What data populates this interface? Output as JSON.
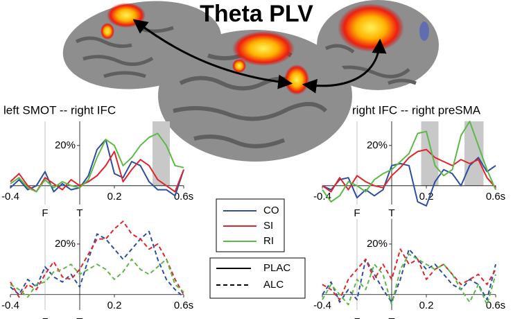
{
  "title": "Theta PLV",
  "chart_data": [
    {
      "type": "line",
      "title": "left SMOT -- right IFC",
      "dashed": false,
      "x": [
        -0.4,
        -0.35,
        -0.3,
        -0.25,
        -0.2,
        -0.15,
        -0.1,
        -0.05,
        0,
        0.05,
        0.1,
        0.15,
        0.2,
        0.25,
        0.3,
        0.35,
        0.4,
        0.45,
        0.5,
        0.55,
        0.6
      ],
      "series": [
        {
          "name": "CO",
          "color": "#2b4ea2",
          "values": [
            -1,
            3,
            -2,
            0,
            7,
            -3,
            1,
            -2,
            -1,
            5,
            18,
            23,
            6,
            4,
            12,
            10,
            2,
            -2,
            -2,
            -5,
            8
          ]
        },
        {
          "name": "SI",
          "color": "#e0242b",
          "values": [
            2,
            6,
            0,
            -3,
            4,
            1,
            -2,
            3,
            0,
            2,
            5,
            10,
            17,
            2,
            8,
            13,
            10,
            3,
            0,
            -3,
            8
          ]
        },
        {
          "name": "RI",
          "color": "#5cb947",
          "values": [
            1,
            4,
            -1,
            -3,
            3,
            -1,
            2,
            0,
            -1,
            3,
            14,
            23,
            20,
            10,
            14,
            20,
            24,
            26,
            20,
            10,
            9
          ]
        }
      ],
      "xlim": [
        -0.4,
        0.6
      ],
      "ylim": [
        -8,
        32
      ],
      "xticks": [
        -0.4,
        0.2,
        {
          "value": 0.6,
          "label": "0.6s"
        }
      ],
      "yticks": [
        {
          "value": 20,
          "label": "20%"
        }
      ],
      "markers": [
        {
          "value": -0.2,
          "label": "F"
        },
        {
          "value": 0,
          "label": "T"
        }
      ],
      "highlights": [
        [
          0.42,
          0.52
        ]
      ]
    },
    {
      "type": "line",
      "title": "right IFC -- right preSMA",
      "dashed": false,
      "x": [
        -0.4,
        -0.35,
        -0.3,
        -0.25,
        -0.2,
        -0.15,
        -0.1,
        -0.05,
        0,
        0.05,
        0.1,
        0.15,
        0.2,
        0.25,
        0.3,
        0.35,
        0.4,
        0.45,
        0.5,
        0.55,
        0.6
      ],
      "series": [
        {
          "name": "CO",
          "color": "#2b4ea2",
          "values": [
            0,
            -2,
            3,
            4,
            -6,
            -2,
            -5,
            -2,
            10,
            11,
            10,
            -8,
            -10,
            2,
            8,
            6,
            0,
            10,
            14,
            7,
            10
          ]
        },
        {
          "name": "SI",
          "color": "#e0242b",
          "values": [
            0,
            -3,
            4,
            -2,
            5,
            2,
            0,
            -1,
            5,
            9,
            14,
            17,
            18,
            14,
            12,
            10,
            13,
            11,
            13,
            4,
            -1
          ]
        },
        {
          "name": "RI",
          "color": "#5cb947",
          "values": [
            -2,
            -8,
            -5,
            2,
            0,
            -3,
            3,
            6,
            8,
            12,
            16,
            26,
            27,
            10,
            5,
            8,
            25,
            32,
            20,
            8,
            -2
          ]
        }
      ],
      "xlim": [
        -0.4,
        0.6
      ],
      "ylim": [
        -8,
        32
      ],
      "xticks": [
        -0.4,
        0.2,
        {
          "value": 0.6,
          "label": "0.6s"
        }
      ],
      "yticks": [
        {
          "value": 20,
          "label": "20%"
        }
      ],
      "markers": [
        {
          "value": -0.2,
          "label": "F"
        },
        {
          "value": 0,
          "label": "T"
        }
      ],
      "highlights": [
        [
          0.17,
          0.27
        ],
        [
          0.42,
          0.53
        ]
      ]
    },
    {
      "type": "line",
      "dashed": true,
      "x": [
        -0.4,
        -0.35,
        -0.3,
        -0.25,
        -0.2,
        -0.15,
        -0.1,
        -0.05,
        0,
        0.05,
        0.1,
        0.15,
        0.2,
        0.25,
        0.3,
        0.35,
        0.4,
        0.45,
        0.5,
        0.55,
        0.6
      ],
      "series": [
        {
          "name": "CO",
          "color": "#2b4ea2",
          "values": [
            3,
            0,
            6,
            3,
            11,
            7,
            5,
            8,
            3,
            14,
            24,
            22,
            18,
            14,
            18,
            22,
            25,
            14,
            6,
            2,
            -1
          ]
        },
        {
          "name": "SI",
          "color": "#e0242b",
          "values": [
            5,
            -1,
            4,
            2,
            8,
            13,
            7,
            6,
            10,
            16,
            22,
            22,
            26,
            29,
            24,
            22,
            18,
            20,
            14,
            6,
            0
          ]
        },
        {
          "name": "RI",
          "color": "#5cb947",
          "values": [
            4,
            2,
            -1,
            4,
            5,
            9,
            10,
            12,
            8,
            10,
            12,
            10,
            6,
            9,
            14,
            10,
            8,
            11,
            14,
            4,
            1
          ]
        }
      ],
      "xlim": [
        -0.4,
        0.6
      ],
      "ylim": [
        -5,
        30
      ],
      "xticks": [
        -0.4,
        0.2,
        {
          "value": 0.6,
          "label": "0.6s"
        }
      ],
      "yticks": [
        {
          "value": 20,
          "label": "20%"
        }
      ],
      "markers": [
        {
          "value": -0.2,
          "label": "F"
        },
        {
          "value": 0,
          "label": "T"
        }
      ]
    },
    {
      "type": "line",
      "dashed": true,
      "x": [
        -0.4,
        -0.35,
        -0.3,
        -0.25,
        -0.2,
        -0.15,
        -0.1,
        -0.05,
        0,
        0.05,
        0.1,
        0.15,
        0.2,
        0.25,
        0.3,
        0.35,
        0.4,
        0.45,
        0.5,
        0.55,
        0.6
      ],
      "series": [
        {
          "name": "CO",
          "color": "#2b4ea2",
          "values": [
            0,
            5,
            -3,
            2,
            -2,
            14,
            8,
            2,
            -3,
            6,
            18,
            14,
            10,
            12,
            8,
            4,
            2,
            6,
            4,
            -2,
            12
          ]
        },
        {
          "name": "SI",
          "color": "#e0242b",
          "values": [
            4,
            2,
            -2,
            6,
            10,
            14,
            6,
            12,
            6,
            18,
            12,
            14,
            6,
            10,
            12,
            8,
            4,
            6,
            8,
            4,
            10
          ]
        },
        {
          "name": "RI",
          "color": "#5cb947",
          "values": [
            -2,
            4,
            0,
            -4,
            6,
            2,
            12,
            8,
            -4,
            10,
            16,
            14,
            12,
            10,
            12,
            8,
            2,
            -3,
            4,
            -4,
            8
          ]
        }
      ],
      "xlim": [
        -0.4,
        0.6
      ],
      "ylim": [
        -5,
        30
      ],
      "xticks": [
        -0.4,
        0.2,
        {
          "value": 0.6,
          "label": "0.6s"
        }
      ],
      "yticks": [
        {
          "value": 20,
          "label": "20%"
        }
      ],
      "markers": [
        {
          "value": -0.2,
          "label": "F"
        },
        {
          "value": 0,
          "label": "T"
        }
      ]
    }
  ],
  "line_style_legend": [
    {
      "label": "PLAC",
      "dashed": false
    },
    {
      "label": "ALC",
      "dashed": true
    }
  ]
}
